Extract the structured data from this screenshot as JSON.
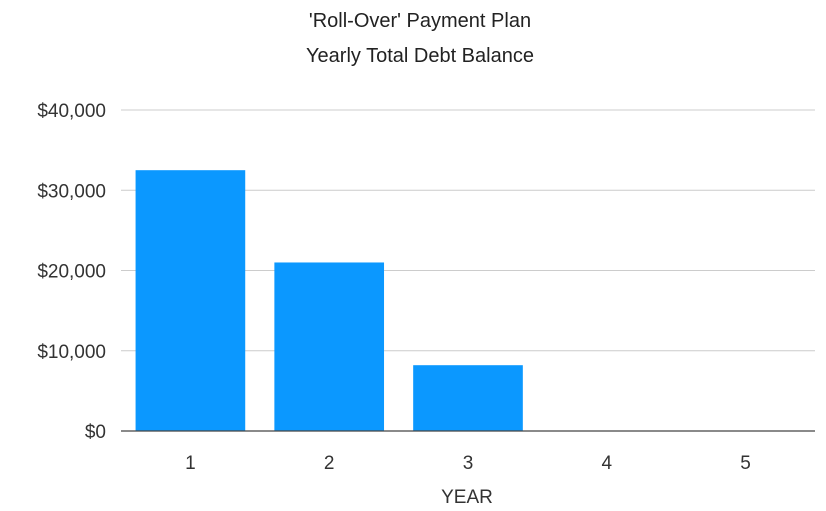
{
  "chart_data": {
    "type": "bar",
    "title": "'Roll-Over' Payment Plan",
    "subtitle": "Yearly Total Debt Balance",
    "xlabel": "YEAR",
    "ylabel": "",
    "categories": [
      "1",
      "2",
      "3",
      "4",
      "5"
    ],
    "series": [
      {
        "values": [
          32500,
          21000,
          8200,
          0,
          0
        ],
        "color": "#0b98ff"
      }
    ],
    "ylim": [
      0,
      40000
    ],
    "yticks": [
      0,
      10000,
      20000,
      30000,
      40000
    ],
    "ytick_labels": [
      "$0",
      "$10,000",
      "$20,000",
      "$30,000",
      "$40,000"
    ],
    "grid": true,
    "legend": "none"
  }
}
